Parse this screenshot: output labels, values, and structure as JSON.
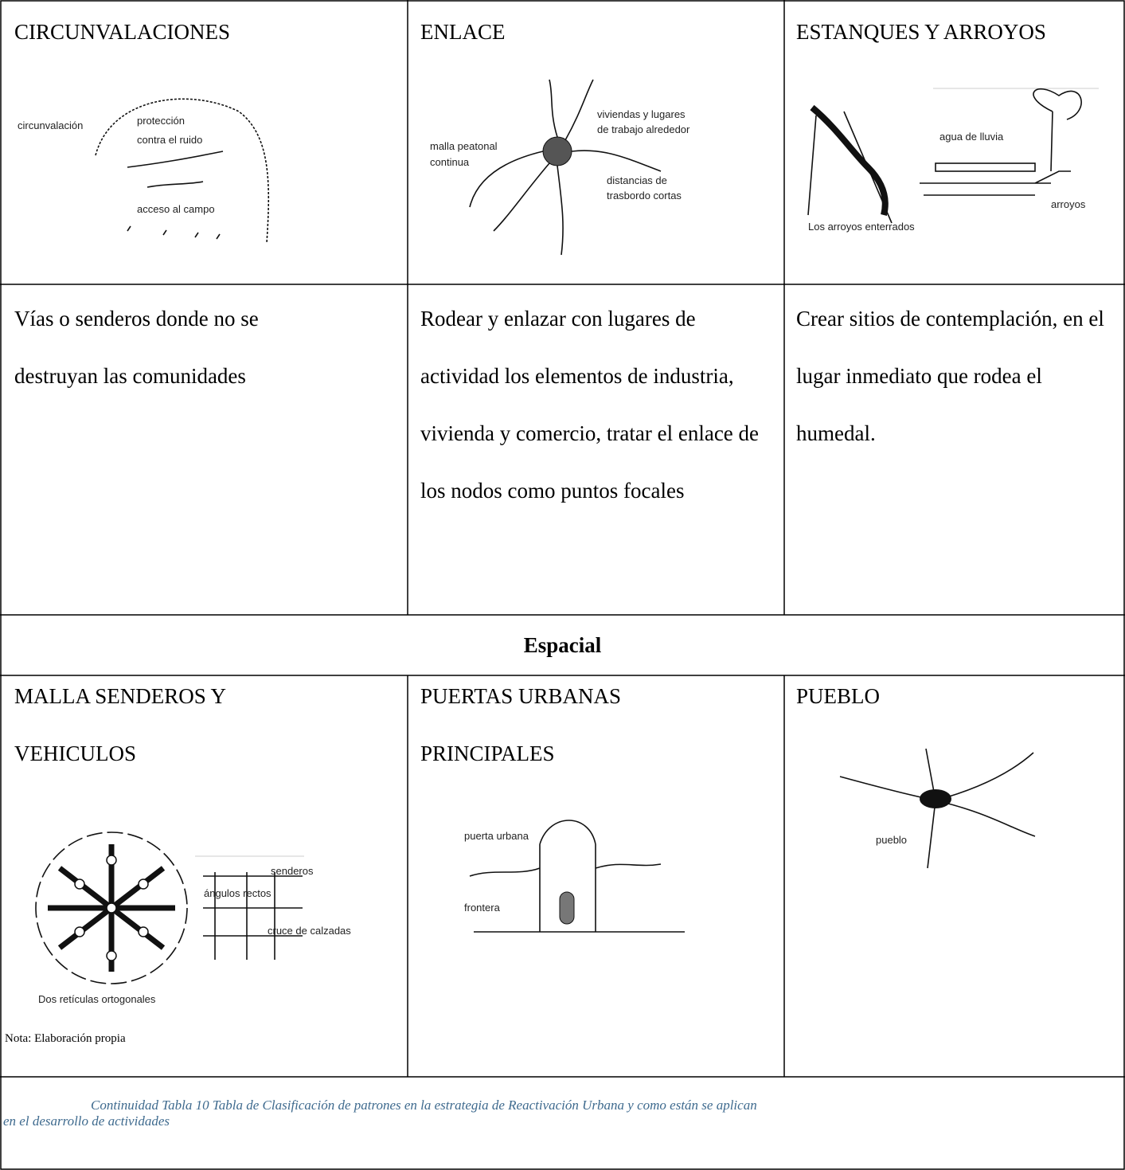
{
  "table": {
    "rows": [
      {
        "cells": [
          {
            "title": "CIRCUNVALACIONES",
            "sketch_labels": [
              "circunvalación",
              "protección",
              "contra el ruido",
              "acceso al campo"
            ]
          },
          {
            "title": "ENLACE",
            "sketch_labels": [
              "malla peatonal",
              "continua",
              "viviendas y lugares",
              "de trabajo alrededor",
              "distancias de",
              "trasbordo cortas"
            ]
          },
          {
            "title": "ESTANQUES Y ARROYOS",
            "sketch_labels": [
              "agua de lluvia",
              "arroyos",
              "Los arroyos enterrados"
            ]
          }
        ]
      },
      {
        "cells": [
          {
            "text": "Vías o senderos donde no se destruyan las comunidades"
          },
          {
            "text": "Rodear y enlazar con lugares de actividad los elementos de industria, vivienda y comercio, tratar el enlace de los nodos como puntos focales"
          },
          {
            "text": "Crear sitios de contemplación, en el lugar inmediato que rodea el humedal."
          }
        ]
      },
      {
        "section": "Espacial"
      },
      {
        "cells": [
          {
            "title": "MALLA SENDEROS Y VEHICULOS",
            "sketch_labels": [
              "senderos",
              "ángulos rectos",
              "cruce de calzadas",
              "Dos retículas ortogonales"
            ],
            "note": "Nota: Elaboración propia"
          },
          {
            "title": "PUERTAS URBANAS PRINCIPALES",
            "sketch_labels": [
              "puerta urbana",
              "frontera"
            ]
          },
          {
            "title": "PUEBLO",
            "sketch_labels": [
              "pueblo"
            ]
          }
        ]
      }
    ]
  },
  "caption": "Continuidad Tabla 10 Tabla de Clasificación de patrones en la estrategia de Reactivación Urbana y como están se aplican en el desarrollo de actividades"
}
